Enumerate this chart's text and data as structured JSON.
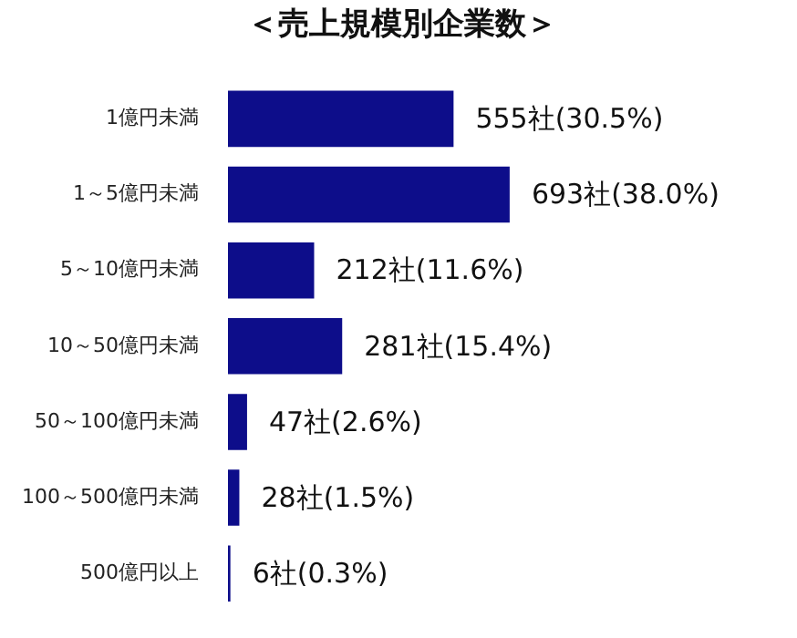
{
  "chart_data": {
    "type": "bar",
    "orientation": "horizontal",
    "title": "＜売上規模別企業数＞",
    "categories": [
      "1億円未満",
      "1～5億円未満",
      "5～10億円未満",
      "10～50億円未満",
      "50～100億円未満",
      "100～500億円未満",
      "500億円以上"
    ],
    "values": [
      555,
      693,
      212,
      281,
      47,
      28,
      6
    ],
    "value_labels": [
      "555社(30.5%)",
      "693社(38.0%)",
      "212社(11.6%)",
      "281社(15.4%)",
      "47社(2.6%)",
      "28社(1.5%)",
      "6社(0.3%)"
    ],
    "color": "#0d0d8a",
    "legend": false
  }
}
